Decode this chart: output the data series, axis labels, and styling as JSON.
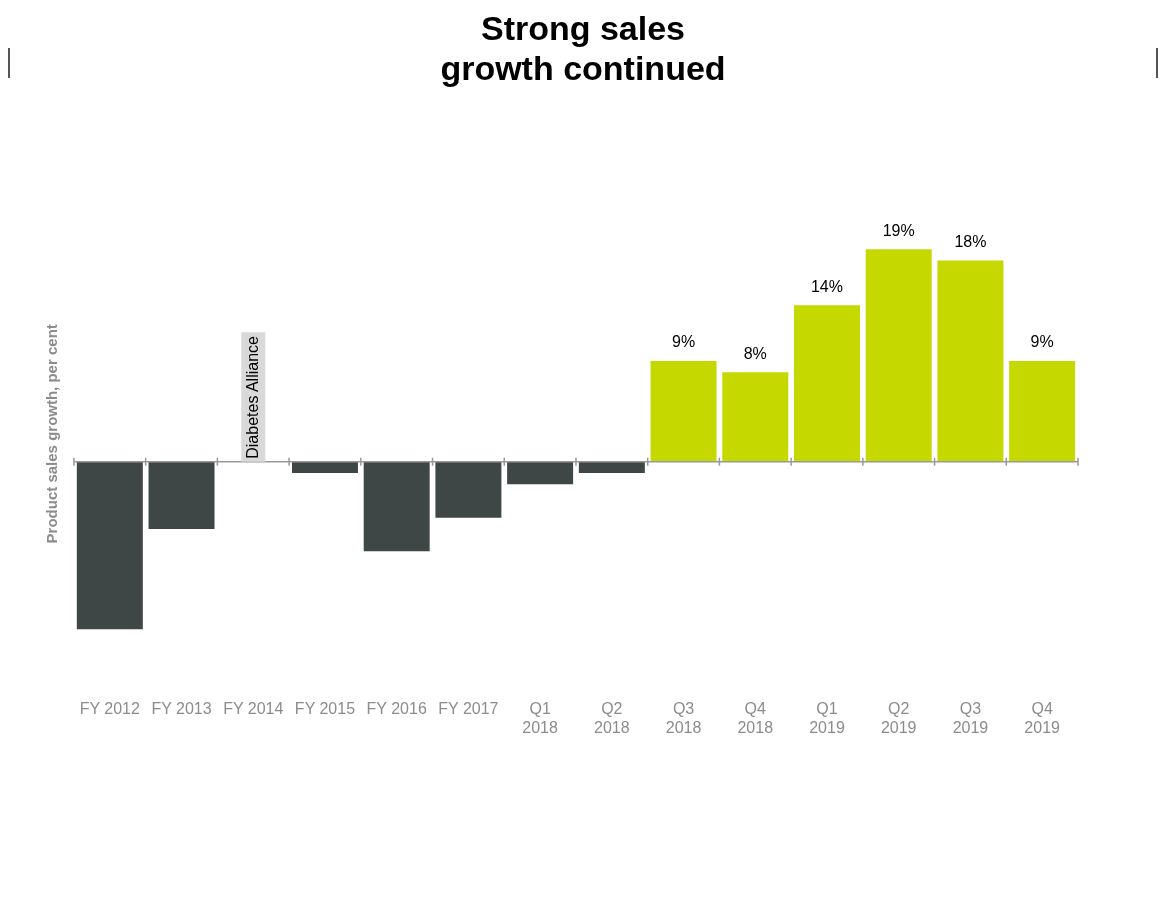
{
  "chart_data": {
    "type": "bar",
    "title": "Strong sales\ngrowth continued",
    "ylabel": "Product sales growth, per cent",
    "categories": [
      "FY 2012",
      "FY 2013",
      "FY 2014",
      "FY 2015",
      "FY 2016",
      "FY 2017",
      "Q1\n2018",
      "Q2\n2018",
      "Q3\n2018",
      "Q4\n2018",
      "Q1\n2019",
      "Q2\n2019",
      "Q3\n2019",
      "Q4\n2019"
    ],
    "values": [
      -15,
      -6,
      null,
      -1,
      -8,
      -5,
      -2,
      -1,
      9,
      8,
      14,
      19,
      18,
      9
    ],
    "colors": [
      "#3f4646",
      "#3f4646",
      "#3f4646",
      "#3f4646",
      "#3f4646",
      "#3f4646",
      "#3f4646",
      "#3f4646",
      "#c5d800",
      "#c5d800",
      "#c5d800",
      "#c5d800",
      "#c5d800",
      "#c5d800"
    ],
    "value_labels": [
      null,
      null,
      null,
      null,
      null,
      null,
      null,
      null,
      "9%",
      "8%",
      "14%",
      "19%",
      "18%",
      "9%"
    ],
    "annotations": [
      "Diabetes Alliance"
    ],
    "tick_labels": "x",
    "grid": false,
    "legend": false
  }
}
